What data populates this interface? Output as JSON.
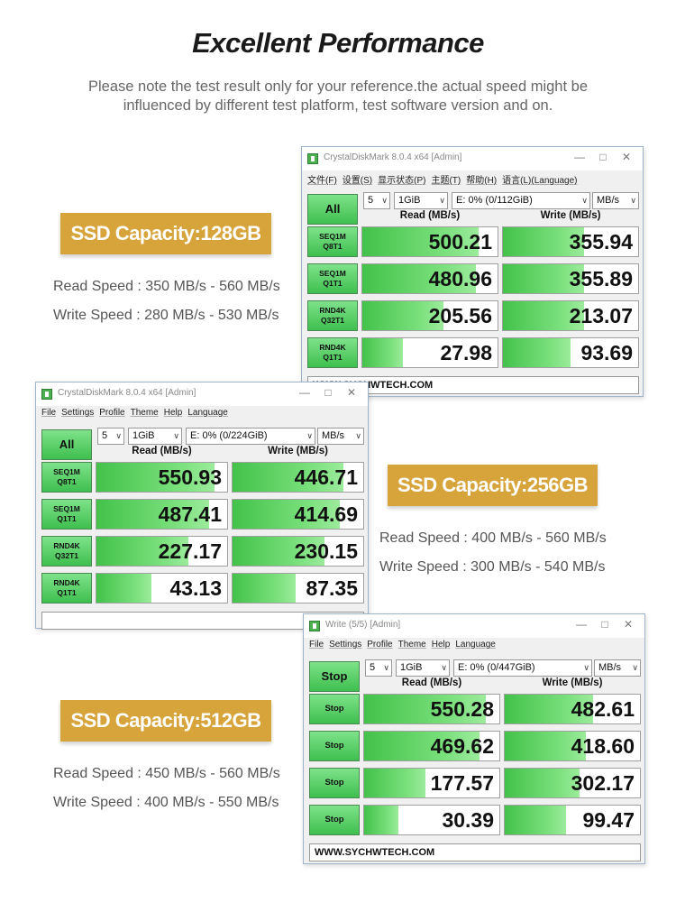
{
  "header": {
    "title": "Excellent Performance",
    "note_line1": "Please note the test result only for your reference.the actual speed might be",
    "note_line2": "influenced by different test platform, test software version and on."
  },
  "colors": {
    "badge": "#d7a43b",
    "bar_green": "#43c24a",
    "button_green": "#3fbf4f"
  },
  "icons": {
    "window_app": "crystaldiskmark-icon",
    "minimize": "minimize-icon",
    "maximize": "maximize-icon",
    "close": "close-icon",
    "dropdown": "chevron-down-icon"
  },
  "sections": [
    {
      "capacity": "SSD Capacity:128GB",
      "read_spec": "Read Speed : 350 MB/s - 560 MB/s",
      "write_spec": "Write Speed : 280 MB/s - 530 MB/s",
      "window": {
        "title": "CrystalDiskMark 8.0.4 x64 [Admin]",
        "menu": [
          "文件(F)",
          "设置(S)",
          "显示状态(P)",
          "主题(T)",
          "帮助(H)",
          "语言(L)(Language)"
        ],
        "main_button": "All",
        "count": "5",
        "size": "1GiB",
        "drive": "E: 0% (0/112GiB)",
        "unit": "MB/s",
        "read_header": "Read (MB/s)",
        "write_header": "Write (MB/s)",
        "rows": [
          {
            "l1": "SEQ1M",
            "l2": "Q8T1",
            "read": "500.21",
            "write": "355.94"
          },
          {
            "l1": "SEQ1M",
            "l2": "Q1T1",
            "read": "480.96",
            "write": "355.89"
          },
          {
            "l1": "RND4K",
            "l2": "Q32T1",
            "read": "205.56",
            "write": "213.07"
          },
          {
            "l1": "RND4K",
            "l2": "Q1T1",
            "read": "27.98",
            "write": "93.69"
          }
        ],
        "fills": [
          [
            0.86,
            0.6
          ],
          [
            0.84,
            0.6
          ],
          [
            0.6,
            0.6
          ],
          [
            0.3,
            0.5
          ]
        ],
        "status": "WWW.SYCHWTECH.COM"
      }
    },
    {
      "capacity": "SSD Capacity:256GB",
      "read_spec": "Read Speed : 400 MB/s - 560 MB/s",
      "write_spec": "Write Speed : 300 MB/s - 540 MB/s",
      "window": {
        "title": "CrystalDiskMark 8.0.4 x64 [Admin]",
        "menu": [
          "File",
          "Settings",
          "Profile",
          "Theme",
          "Help",
          "Language"
        ],
        "main_button": "All",
        "count": "5",
        "size": "1GiB",
        "drive": "E: 0% (0/224GiB)",
        "unit": "MB/s",
        "read_header": "Read (MB/s)",
        "write_header": "Write (MB/s)",
        "rows": [
          {
            "l1": "SEQ1M",
            "l2": "Q8T1",
            "read": "550.93",
            "write": "446.71"
          },
          {
            "l1": "SEQ1M",
            "l2": "Q1T1",
            "read": "487.41",
            "write": "414.69"
          },
          {
            "l1": "RND4K",
            "l2": "Q32T1",
            "read": "227.17",
            "write": "230.15"
          },
          {
            "l1": "RND4K",
            "l2": "Q1T1",
            "read": "43.13",
            "write": "87.35"
          }
        ],
        "fills": [
          [
            0.9,
            0.85
          ],
          [
            0.86,
            0.82
          ],
          [
            0.7,
            0.7
          ],
          [
            0.42,
            0.48
          ]
        ],
        "status": ""
      }
    },
    {
      "capacity": "SSD Capacity:512GB",
      "read_spec": "Read Speed : 450 MB/s - 560 MB/s",
      "write_spec": "Write Speed : 400 MB/s - 550 MB/s",
      "window": {
        "title": "Write (5/5) [Admin]",
        "menu": [
          "File",
          "Settings",
          "Profile",
          "Theme",
          "Help",
          "Language"
        ],
        "main_button": "Stop",
        "count": "5",
        "size": "1GiB",
        "drive": "E: 0% (0/447GiB)",
        "unit": "MB/s",
        "read_header": "Read (MB/s)",
        "write_header": "Write (MB/s)",
        "rows": [
          {
            "l1": "Stop",
            "l2": "",
            "read": "550.28",
            "write": "482.61"
          },
          {
            "l1": "Stop",
            "l2": "",
            "read": "469.62",
            "write": "418.60"
          },
          {
            "l1": "Stop",
            "l2": "",
            "read": "177.57",
            "write": "302.17"
          },
          {
            "l1": "Stop",
            "l2": "",
            "read": "30.39",
            "write": "99.47"
          }
        ],
        "fills": [
          [
            0.9,
            0.65
          ],
          [
            0.85,
            0.6
          ],
          [
            0.45,
            0.55
          ],
          [
            0.25,
            0.45
          ]
        ],
        "status": "WWW.SYCHWTECH.COM"
      }
    }
  ]
}
